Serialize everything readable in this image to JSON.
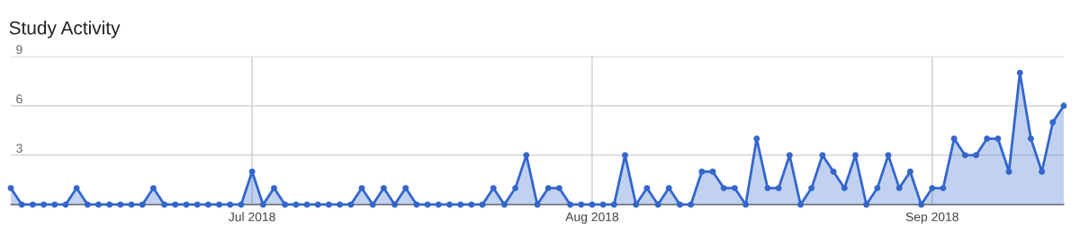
{
  "chart_data": {
    "type": "area",
    "title": "Study Activity",
    "x": [
      "2018-06-09",
      "2018-06-10",
      "2018-06-11",
      "2018-06-12",
      "2018-06-13",
      "2018-06-14",
      "2018-06-15",
      "2018-06-16",
      "2018-06-17",
      "2018-06-18",
      "2018-06-19",
      "2018-06-20",
      "2018-06-21",
      "2018-06-22",
      "2018-06-23",
      "2018-06-24",
      "2018-06-25",
      "2018-06-26",
      "2018-06-27",
      "2018-06-28",
      "2018-06-29",
      "2018-06-30",
      "2018-07-01",
      "2018-07-02",
      "2018-07-03",
      "2018-07-04",
      "2018-07-05",
      "2018-07-06",
      "2018-07-07",
      "2018-07-08",
      "2018-07-09",
      "2018-07-10",
      "2018-07-11",
      "2018-07-12",
      "2018-07-13",
      "2018-07-14",
      "2018-07-15",
      "2018-07-16",
      "2018-07-17",
      "2018-07-18",
      "2018-07-19",
      "2018-07-20",
      "2018-07-21",
      "2018-07-22",
      "2018-07-23",
      "2018-07-24",
      "2018-07-25",
      "2018-07-26",
      "2018-07-27",
      "2018-07-28",
      "2018-07-29",
      "2018-07-30",
      "2018-07-31",
      "2018-08-01",
      "2018-08-02",
      "2018-08-03",
      "2018-08-04",
      "2018-08-05",
      "2018-08-06",
      "2018-08-07",
      "2018-08-08",
      "2018-08-09",
      "2018-08-10",
      "2018-08-11",
      "2018-08-12",
      "2018-08-13",
      "2018-08-14",
      "2018-08-15",
      "2018-08-16",
      "2018-08-17",
      "2018-08-18",
      "2018-08-19",
      "2018-08-20",
      "2018-08-21",
      "2018-08-22",
      "2018-08-23",
      "2018-08-24",
      "2018-08-25",
      "2018-08-26",
      "2018-08-27",
      "2018-08-28",
      "2018-08-29",
      "2018-08-30",
      "2018-08-31",
      "2018-09-01",
      "2018-09-02",
      "2018-09-03",
      "2018-09-04",
      "2018-09-05",
      "2018-09-06",
      "2018-09-07",
      "2018-09-08",
      "2018-09-09",
      "2018-09-10",
      "2018-09-11",
      "2018-09-12",
      "2018-09-13"
    ],
    "series": [
      {
        "color": "#3366cc",
        "values": [
          1,
          0,
          0,
          0,
          0,
          0,
          1,
          0,
          0,
          0,
          0,
          0,
          0,
          1,
          0,
          0,
          0,
          0,
          0,
          0,
          0,
          0,
          2,
          0,
          1,
          0,
          0,
          0,
          0,
          0,
          0,
          0,
          1,
          0,
          1,
          0,
          1,
          0,
          0,
          0,
          0,
          0,
          0,
          0,
          1,
          0,
          1,
          3,
          0,
          1,
          1,
          0,
          0,
          0,
          0,
          0,
          3,
          0,
          1,
          0,
          1,
          0,
          0,
          2,
          2,
          1,
          1,
          0,
          4,
          1,
          1,
          3,
          0,
          1,
          3,
          2,
          1,
          3,
          0,
          1,
          3,
          1,
          2,
          0,
          1,
          1,
          4,
          3,
          3,
          4,
          4,
          2,
          8,
          4,
          2,
          5,
          6
        ]
      }
    ],
    "xlim": [
      "2018-06-09",
      "2018-09-13"
    ],
    "xticks": [
      {
        "value": "2018-07-01",
        "label": "Jul 2018"
      },
      {
        "value": "2018-08-01",
        "label": "Aug 2018"
      },
      {
        "value": "2018-09-01",
        "label": "Sep 2018"
      }
    ],
    "ylim": [
      0,
      9
    ],
    "yticks": [
      {
        "value": 0,
        "label": null
      },
      3,
      6,
      9
    ],
    "grid": true,
    "marker": "circle",
    "line_style": "solid"
  }
}
